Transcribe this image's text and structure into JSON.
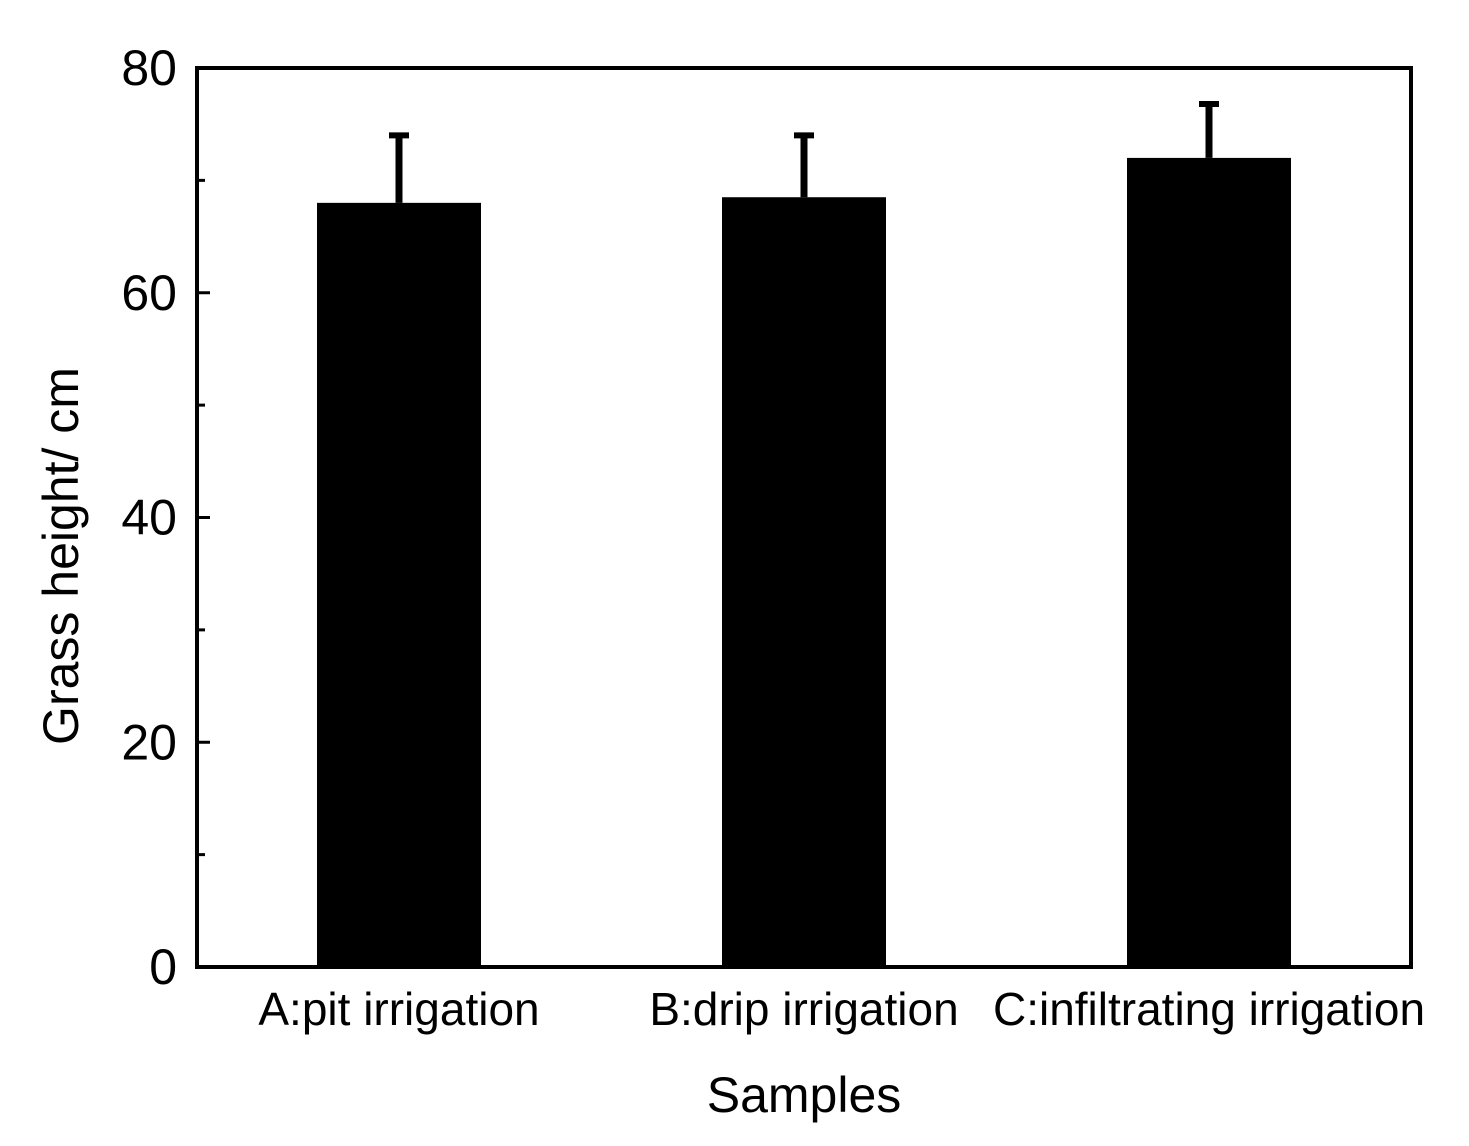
{
  "chart_data": {
    "type": "bar",
    "title": "",
    "xlabel": "Samples",
    "ylabel": "Grass height/ cm",
    "categories": [
      "A:pit irrigation",
      "B:drip irrigation",
      "C:infiltrating irrigation"
    ],
    "values": [
      68.0,
      68.5,
      72.0
    ],
    "error_upper": [
      6.0,
      5.5,
      4.8
    ],
    "ylim": [
      0,
      80
    ],
    "yticks_major": [
      0,
      20,
      40,
      60,
      80
    ],
    "yticks_minor": [
      10,
      30,
      50,
      70
    ],
    "ytick_labels": [
      "0",
      "20",
      "40",
      "60",
      "80"
    ],
    "grid": false,
    "legend": "none",
    "bar_color": "#000000"
  }
}
